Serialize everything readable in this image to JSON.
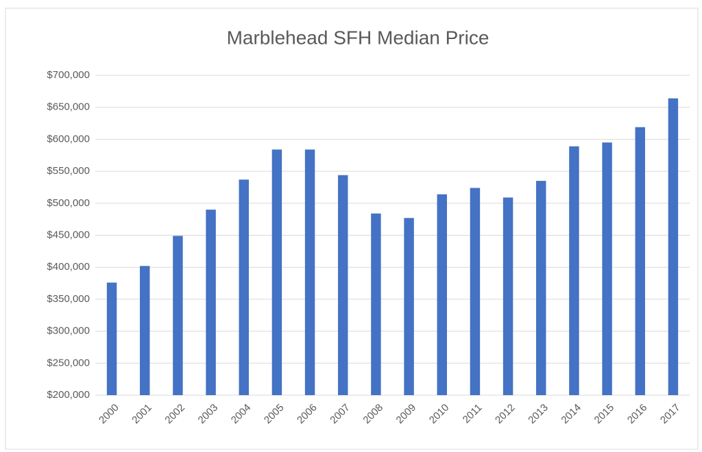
{
  "chart_data": {
    "type": "bar",
    "title": "Marblehead SFH Median Price",
    "categories": [
      "2000",
      "2001",
      "2002",
      "2003",
      "2004",
      "2005",
      "2006",
      "2007",
      "2008",
      "2009",
      "2010",
      "2011",
      "2012",
      "2013",
      "2014",
      "2015",
      "2016",
      "2017"
    ],
    "values": [
      376000,
      402000,
      449000,
      490000,
      537000,
      584000,
      584000,
      544000,
      484000,
      477000,
      514000,
      524000,
      509000,
      535000,
      589000,
      595000,
      619000,
      664000
    ],
    "color": "#4472c4",
    "ylim": [
      200000,
      700000
    ],
    "yticks": [
      {
        "value": 200000,
        "label": "$200,000"
      },
      {
        "value": 250000,
        "label": "$250,000"
      },
      {
        "value": 300000,
        "label": "$300,000"
      },
      {
        "value": 350000,
        "label": "$350,000"
      },
      {
        "value": 400000,
        "label": "$400,000"
      },
      {
        "value": 450000,
        "label": "$450,000"
      },
      {
        "value": 500000,
        "label": "$500,000"
      },
      {
        "value": 550000,
        "label": "$550,000"
      },
      {
        "value": 600000,
        "label": "$600,000"
      },
      {
        "value": 650000,
        "label": "$650,000"
      },
      {
        "value": 700000,
        "label": "$700,000"
      }
    ],
    "grid": true
  }
}
